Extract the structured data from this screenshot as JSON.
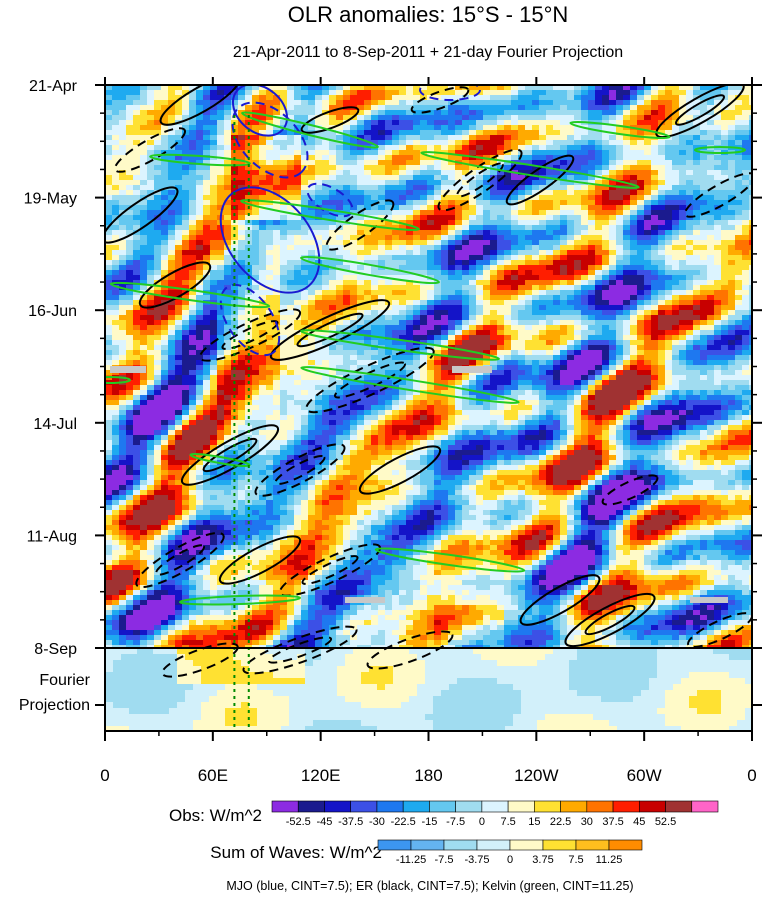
{
  "chart_data": {
    "type": "heatmap",
    "title": "OLR anomalies: 15°S - 15°N",
    "subtitle": "21-Apr-2011 to 8-Sep-2011 + 21-day Fourier Projection",
    "x_tick_labels": [
      "0",
      "60E",
      "120E",
      "180",
      "120W",
      "60W",
      "0"
    ],
    "x_tick_degrees": [
      0,
      60,
      120,
      180,
      240,
      300,
      360
    ],
    "y_tick_labels": [
      "21-Apr",
      "19-May",
      "16-Jun",
      "14-Jul",
      "11-Aug",
      "8-Sep"
    ],
    "y_tick_days": [
      0,
      28,
      56,
      84,
      112,
      140
    ],
    "projection_label_lines": [
      "Fourier",
      "Projection"
    ],
    "projection_days": 21,
    "obs_colorbar": {
      "title": "Obs: W/m^2",
      "labels": [
        "-52.5",
        "-45",
        "-37.5",
        "-30",
        "-22.5",
        "-15",
        "-7.5",
        "0",
        "7.5",
        "15",
        "22.5",
        "30",
        "37.5",
        "45",
        "52.5"
      ],
      "colors": [
        "#8c2be2",
        "#1b1b8e",
        "#1414c8",
        "#3c50e6",
        "#1e78f0",
        "#1eaaf0",
        "#64c8f0",
        "#a0dcf0",
        "#dcf4ff",
        "#fffac8",
        "#ffe132",
        "#ffaa00",
        "#ff7300",
        "#ff1e00",
        "#c80000",
        "#a03232",
        "#ff64c8"
      ]
    },
    "waves_colorbar": {
      "title": "Sum of Waves: W/m^2",
      "labels": [
        "-11.25",
        "-7.5",
        "-3.75",
        "0",
        "3.75",
        "7.5",
        "11.25"
      ],
      "colors": [
        "#3c96f0",
        "#64b4f0",
        "#a0dcf0",
        "#d2f0fa",
        "#fffac8",
        "#ffe132",
        "#ffbe1e",
        "#ff8c00"
      ]
    },
    "footnote": "MJO (blue, CINT=7.5); ER (black, CINT=7.5); Kelvin (green, CINT=11.25)",
    "wave_colors": {
      "mjo": "#1a1ad0",
      "er": "#000000",
      "kelvin": "#22cc22"
    },
    "reference_longitudes": [
      72,
      80
    ]
  }
}
